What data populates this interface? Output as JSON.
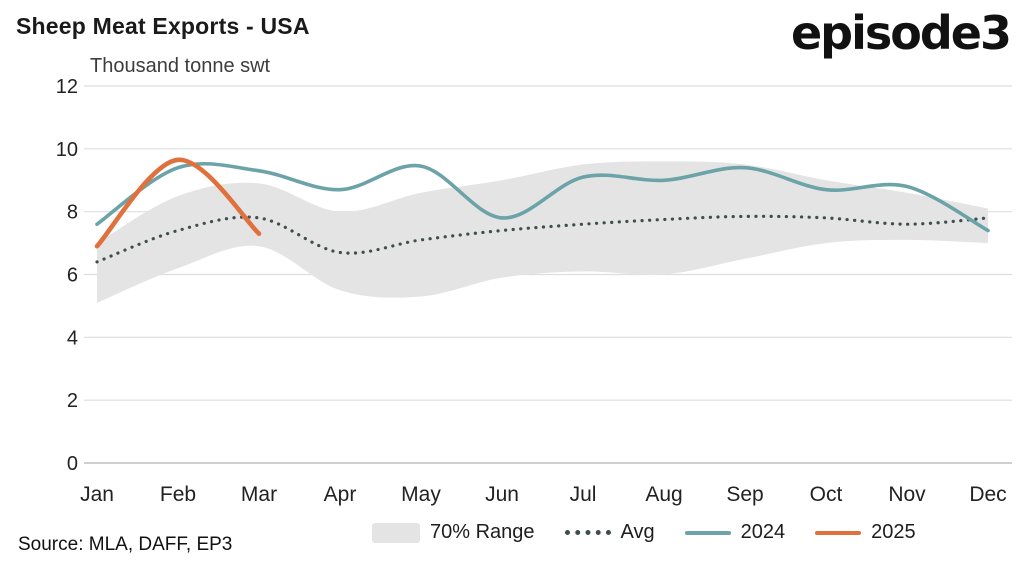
{
  "header": {
    "title": "Sheep Meat Exports - USA",
    "subtitle": "Thousand tonne swt",
    "logo": "episode3"
  },
  "source": "Source: MLA, DAFF, EP3",
  "chart_data": {
    "type": "line",
    "title": "Sheep Meat Exports - USA",
    "ylabel": "Thousand tonne swt",
    "categories": [
      "Jan",
      "Feb",
      "Mar",
      "Apr",
      "May",
      "Jun",
      "Jul",
      "Aug",
      "Sep",
      "Oct",
      "Nov",
      "Dec"
    ],
    "ylim": [
      0,
      12
    ],
    "yticks": [
      0,
      2,
      4,
      6,
      8,
      10,
      12
    ],
    "grid": true,
    "legend_position": "bottom",
    "band": {
      "name": "70% Range",
      "color": "#e4e4e4",
      "upper": [
        7.0,
        8.5,
        8.9,
        8.0,
        8.6,
        9.0,
        9.5,
        9.6,
        9.5,
        9.0,
        8.6,
        8.1
      ],
      "lower": [
        5.1,
        6.2,
        6.9,
        5.5,
        5.3,
        5.9,
        6.1,
        6.0,
        6.5,
        7.0,
        7.1,
        7.0
      ]
    },
    "series": [
      {
        "name": "Avg",
        "style": "dotted",
        "color": "#3e4e4e",
        "width": 3.2,
        "values": [
          6.4,
          7.4,
          7.8,
          6.7,
          7.1,
          7.4,
          7.6,
          7.75,
          7.85,
          7.8,
          7.6,
          7.8
        ]
      },
      {
        "name": "2024",
        "style": "solid",
        "color": "#6ba3a8",
        "width": 3.6,
        "values": [
          7.6,
          9.4,
          9.3,
          8.7,
          9.45,
          7.8,
          9.1,
          9.0,
          9.4,
          8.7,
          8.8,
          7.4
        ]
      },
      {
        "name": "2025",
        "style": "solid",
        "color": "#e0713c",
        "width": 4.6,
        "values": [
          6.9,
          9.65,
          7.3,
          null,
          null,
          null,
          null,
          null,
          null,
          null,
          null,
          null
        ]
      }
    ]
  }
}
